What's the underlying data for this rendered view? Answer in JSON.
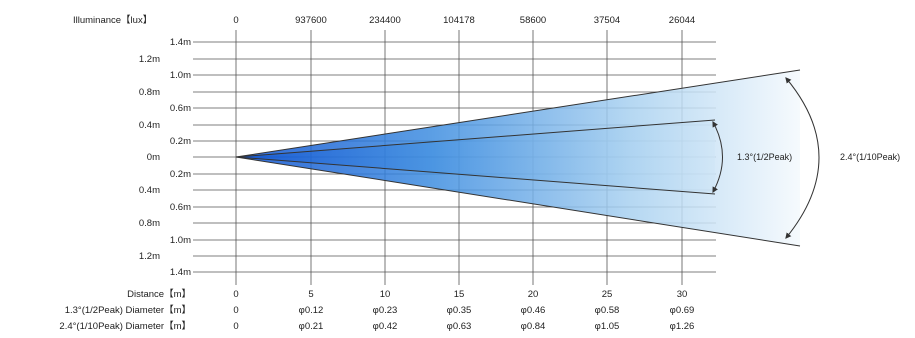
{
  "title_row_label": "Illuminance【lux】",
  "illuminance_values": [
    "0",
    "937600",
    "234400",
    "104178",
    "58600",
    "37504",
    "26044"
  ],
  "y_labels_top": [
    "1.4m",
    "1.2m",
    "1.0m",
    "0.8m",
    "0.6m",
    "0.4m",
    "0.2m"
  ],
  "y_label_center": "0m",
  "y_labels_bottom": [
    "0.2m",
    "0.4m",
    "0.6m",
    "0.8m",
    "1.0m",
    "1.2m",
    "1.4m"
  ],
  "distance_label": "Distance【m】",
  "distance_values": [
    "0",
    "5",
    "10",
    "15",
    "20",
    "25",
    "30"
  ],
  "half_peak_label": "1.3°(1/2Peak) Diameter【m】",
  "half_peak_values": [
    "0",
    "φ0.12",
    "φ0.23",
    "φ0.35",
    "φ0.46",
    "φ0.58",
    "φ0.69"
  ],
  "tenth_peak_label": "2.4°(1/10Peak) Diameter【m】",
  "tenth_peak_values": [
    "0",
    "φ0.21",
    "φ0.42",
    "φ0.63",
    "φ0.84",
    "φ1.05",
    "φ1.26"
  ],
  "half_peak_angle_label": "1.3°(1/2Peak)",
  "tenth_peak_angle_label": "2.4°(1/10Peak)",
  "colors": {
    "beam_core": "#0a4fd0",
    "beam_edge": "#e8f3fb",
    "lines": "#555555"
  }
}
